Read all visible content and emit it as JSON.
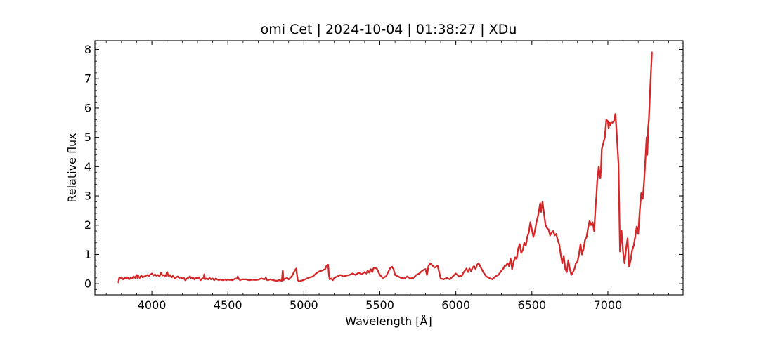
{
  "chart_data": {
    "type": "line",
    "title": "omi Cet | 2024-10-04 | 01:38:27 | XDu",
    "xlabel": "Wavelength [Å]",
    "ylabel": "Relative flux",
    "xlim": [
      3625,
      7495
    ],
    "ylim": [
      -0.38,
      8.3
    ],
    "xticks": [
      4000,
      4500,
      5000,
      5500,
      6000,
      6500,
      7000
    ],
    "yticks": [
      0,
      1,
      2,
      3,
      4,
      5,
      6,
      7,
      8
    ],
    "xtick_labels": [
      "4000",
      "4500",
      "5000",
      "5500",
      "6000",
      "6500",
      "7000"
    ],
    "ytick_labels": [
      "0",
      "1",
      "2",
      "3",
      "4",
      "5",
      "6",
      "7",
      "8"
    ],
    "minor_xtick_step": 100,
    "minor_ytick_step": 0.2,
    "ticks_direction": "in",
    "grid": false,
    "color": "#d62728",
    "series": [
      {
        "x": [
          3780,
          3785,
          3790,
          3800,
          3810,
          3820,
          3830,
          3840,
          3850,
          3860,
          3870,
          3880,
          3890,
          3900,
          3905,
          3910,
          3920,
          3930,
          3940,
          3950,
          3960,
          3970,
          3980,
          3990,
          4000,
          4010,
          4020,
          4030,
          4040,
          4050,
          4060,
          4070,
          4080,
          4090,
          4100,
          4110,
          4120,
          4130,
          4140,
          4150,
          4160,
          4170,
          4180,
          4190,
          4200,
          4210,
          4220,
          4230,
          4240,
          4250,
          4260,
          4270,
          4280,
          4290,
          4300,
          4310,
          4320,
          4330,
          4340,
          4345,
          4350,
          4360,
          4370,
          4380,
          4390,
          4400,
          4410,
          4420,
          4430,
          4440,
          4450,
          4460,
          4470,
          4480,
          4490,
          4500,
          4510,
          4520,
          4530,
          4540,
          4550,
          4560,
          4565,
          4570,
          4580,
          4590,
          4600,
          4620,
          4640,
          4660,
          4680,
          4700,
          4720,
          4740,
          4750,
          4760,
          4780,
          4800,
          4820,
          4840,
          4855,
          4861,
          4866,
          4870,
          4880,
          4890,
          4900,
          4910,
          4920,
          4930,
          4940,
          4950,
          4955,
          4960,
          4970,
          4980,
          5000,
          5020,
          5040,
          5060,
          5080,
          5100,
          5120,
          5140,
          5150,
          5160,
          5165,
          5170,
          5180,
          5190,
          5200,
          5220,
          5240,
          5260,
          5280,
          5300,
          5320,
          5340,
          5360,
          5380,
          5400,
          5410,
          5420,
          5430,
          5440,
          5450,
          5460,
          5480,
          5500,
          5520,
          5540,
          5560,
          5570,
          5580,
          5590,
          5600,
          5620,
          5640,
          5660,
          5680,
          5700,
          5720,
          5740,
          5760,
          5780,
          5800,
          5810,
          5820,
          5830,
          5840,
          5860,
          5880,
          5900,
          5920,
          5940,
          5960,
          5980,
          6000,
          6020,
          6040,
          6050,
          6060,
          6070,
          6080,
          6090,
          6100,
          6110,
          6120,
          6130,
          6140,
          6150,
          6160,
          6180,
          6200,
          6220,
          6240,
          6260,
          6280,
          6300,
          6310,
          6320,
          6330,
          6340,
          6350,
          6360,
          6370,
          6380,
          6390,
          6400,
          6410,
          6420,
          6430,
          6440,
          6450,
          6460,
          6470,
          6480,
          6490,
          6500,
          6510,
          6520,
          6530,
          6540,
          6550,
          6555,
          6560,
          6570,
          6580,
          6590,
          6600,
          6610,
          6620,
          6630,
          6640,
          6650,
          6660,
          6670,
          6680,
          6690,
          6700,
          6710,
          6720,
          6730,
          6740,
          6750,
          6760,
          6770,
          6780,
          6790,
          6800,
          6810,
          6820,
          6830,
          6840,
          6850,
          6860,
          6870,
          6880,
          6890,
          6900,
          6910,
          6920,
          6925,
          6930,
          6940,
          6950,
          6955,
          6960,
          6970,
          6980,
          6990,
          7000,
          7005,
          7010,
          7015,
          7020,
          7030,
          7040,
          7050,
          7060,
          7070,
          7080,
          7090,
          7100,
          7110,
          7120,
          7130,
          7140,
          7150,
          7160,
          7170,
          7180,
          7190,
          7200,
          7210,
          7220,
          7230,
          7240,
          7250,
          7255,
          7260,
          7265,
          7270,
          7280,
          7290
        ],
        "y": [
          0.05,
          0.2,
          0.17,
          0.22,
          0.15,
          0.2,
          0.18,
          0.22,
          0.15,
          0.2,
          0.18,
          0.25,
          0.2,
          0.3,
          0.2,
          0.27,
          0.2,
          0.28,
          0.22,
          0.25,
          0.27,
          0.3,
          0.26,
          0.32,
          0.35,
          0.28,
          0.32,
          0.27,
          0.3,
          0.25,
          0.38,
          0.28,
          0.3,
          0.25,
          0.4,
          0.25,
          0.3,
          0.22,
          0.28,
          0.18,
          0.22,
          0.25,
          0.2,
          0.22,
          0.18,
          0.2,
          0.12,
          0.18,
          0.2,
          0.25,
          0.18,
          0.22,
          0.15,
          0.2,
          0.18,
          0.22,
          0.12,
          0.17,
          0.2,
          0.32,
          0.15,
          0.18,
          0.15,
          0.2,
          0.15,
          0.18,
          0.12,
          0.18,
          0.15,
          0.12,
          0.15,
          0.13,
          0.12,
          0.15,
          0.12,
          0.15,
          0.13,
          0.14,
          0.12,
          0.15,
          0.18,
          0.17,
          0.25,
          0.18,
          0.12,
          0.15,
          0.15,
          0.15,
          0.12,
          0.14,
          0.13,
          0.14,
          0.18,
          0.15,
          0.2,
          0.12,
          0.15,
          0.12,
          0.1,
          0.12,
          0.1,
          0.45,
          0.12,
          0.15,
          0.18,
          0.2,
          0.15,
          0.2,
          0.25,
          0.35,
          0.45,
          0.52,
          0.3,
          0.12,
          0.08,
          0.1,
          0.13,
          0.18,
          0.22,
          0.25,
          0.35,
          0.42,
          0.45,
          0.5,
          0.62,
          0.65,
          0.3,
          0.15,
          0.18,
          0.12,
          0.2,
          0.25,
          0.3,
          0.25,
          0.28,
          0.3,
          0.35,
          0.3,
          0.38,
          0.32,
          0.4,
          0.35,
          0.45,
          0.38,
          0.5,
          0.4,
          0.55,
          0.52,
          0.3,
          0.2,
          0.25,
          0.45,
          0.55,
          0.58,
          0.5,
          0.3,
          0.25,
          0.2,
          0.18,
          0.25,
          0.18,
          0.2,
          0.3,
          0.35,
          0.45,
          0.5,
          0.3,
          0.6,
          0.7,
          0.65,
          0.55,
          0.62,
          0.18,
          0.15,
          0.2,
          0.15,
          0.25,
          0.35,
          0.25,
          0.28,
          0.38,
          0.45,
          0.52,
          0.4,
          0.52,
          0.42,
          0.55,
          0.6,
          0.5,
          0.65,
          0.7,
          0.6,
          0.4,
          0.25,
          0.2,
          0.15,
          0.25,
          0.3,
          0.45,
          0.5,
          0.6,
          0.62,
          0.7,
          0.6,
          0.85,
          0.5,
          0.75,
          0.9,
          0.85,
          1.2,
          1.35,
          1.05,
          1.15,
          1.4,
          1.3,
          1.6,
          1.75,
          2.1,
          1.85,
          1.6,
          1.8,
          2.1,
          2.3,
          2.6,
          2.75,
          2.45,
          2.8,
          2.4,
          2.0,
          1.9,
          1.85,
          1.65,
          1.75,
          1.8,
          1.65,
          1.7,
          1.5,
          1.35,
          1.0,
          0.7,
          0.95,
          0.5,
          0.4,
          0.8,
          0.5,
          0.3,
          0.4,
          0.5,
          0.7,
          0.75,
          1.0,
          1.35,
          1.0,
          1.2,
          1.5,
          1.6,
          1.9,
          2.15,
          2.0,
          2.1,
          1.8,
          2.7,
          3.0,
          3.5,
          4.0,
          3.6,
          3.9,
          4.6,
          4.8,
          5.0,
          5.6,
          5.55,
          5.3,
          5.5,
          5.4,
          5.5,
          5.5,
          5.55,
          5.8,
          5.0,
          4.1,
          1.1,
          1.8,
          1.1,
          0.7,
          1.2,
          1.55,
          0.6,
          0.8,
          1.15,
          1.3,
          1.6,
          1.95,
          1.7,
          2.5,
          3.1,
          2.9,
          3.6,
          4.5,
          5.0,
          4.4,
          5.3,
          5.6,
          6.8,
          7.9
        ]
      }
    ]
  }
}
